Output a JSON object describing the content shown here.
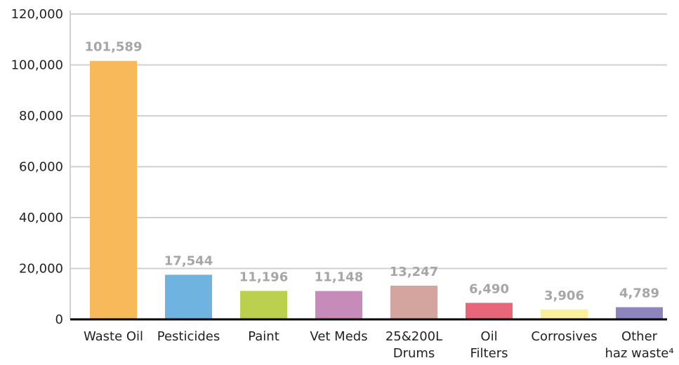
{
  "chart_data": {
    "type": "bar",
    "categories": [
      "Waste Oil",
      "Pesticides",
      "Paint",
      "Vet Meds",
      "25&200L\nDrums",
      "Oil\nFilters",
      "Corrosives",
      "Other\nhaz waste⁴"
    ],
    "values": [
      101589,
      17544,
      11196,
      11148,
      13247,
      6490,
      3906,
      4789
    ],
    "value_labels": [
      "101,589",
      "17,544",
      "11,196",
      "11,148",
      "13,247",
      "6,490",
      "3,906",
      "4,789"
    ],
    "colors": [
      "#f7b95a",
      "#6fb3e0",
      "#bcd04f",
      "#c68bb8",
      "#d4a59e",
      "#e8667a",
      "#f9f19a",
      "#8c86bf"
    ],
    "ylim": [
      0,
      120000
    ],
    "yticks": [
      0,
      {
        "value": 20000,
        "label": "20,000"
      },
      {
        "value": 40000,
        "label": "40,000"
      },
      {
        "value": 60000,
        "label": "60,000"
      },
      {
        "value": 80000,
        "label": "80,000"
      },
      {
        "value": 100000,
        "label": "100,000"
      },
      {
        "value": 120000,
        "label": "120,000"
      }
    ],
    "grid": true
  }
}
